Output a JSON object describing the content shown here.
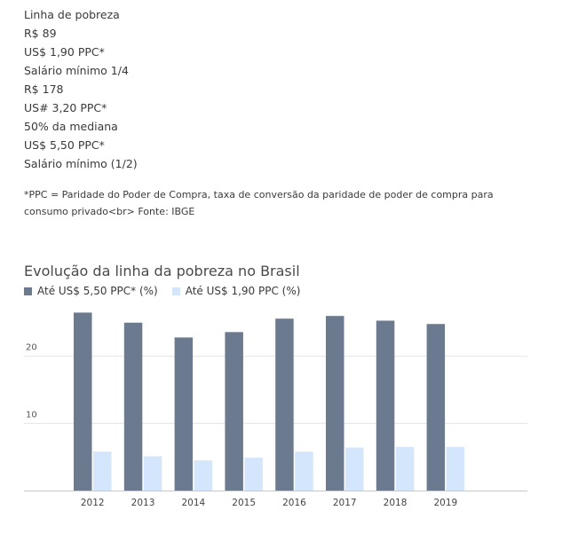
{
  "info_list": [
    "Linha de pobreza",
    "R$ 89",
    "US$ 1,90 PPC*",
    "Salário mínimo 1/4",
    "R$ 178",
    "US# 3,20 PPC*",
    "50% da mediana",
    "US$ 5,50 PPC*",
    "Salário mínimo (1/2)"
  ],
  "footnote": "*PPC = Paridade do Poder de Compra, taxa de conversão da paridade de poder de compra para consumo privado<br> Fonte: IBGE",
  "colors": {
    "series_dark": "#6b7a8f",
    "series_light": "#d3e6fb",
    "grid": "#e4e4e4",
    "baseline": "#c8c8c8"
  },
  "chart_data": {
    "type": "bar",
    "title": "Evolução da linha da pobreza no Brasil",
    "categories": [
      "2012",
      "2013",
      "2014",
      "2015",
      "2016",
      "2017",
      "2018",
      "2019"
    ],
    "series": [
      {
        "name": "Até US$ 5,50 PPC* (%)",
        "color": "#6b7a8f",
        "values": [
          26.5,
          25.0,
          22.8,
          23.6,
          25.6,
          26.0,
          25.3,
          24.8
        ]
      },
      {
        "name": "Até US$ 1,90 PPC (%)",
        "color": "#d3e6fb",
        "values": [
          5.8,
          5.1,
          4.5,
          4.9,
          5.8,
          6.4,
          6.5,
          6.5
        ]
      }
    ],
    "yticks": [
      10,
      20
    ],
    "ylim": [
      0,
      28
    ],
    "grid": true,
    "legend_position": "top-left"
  }
}
